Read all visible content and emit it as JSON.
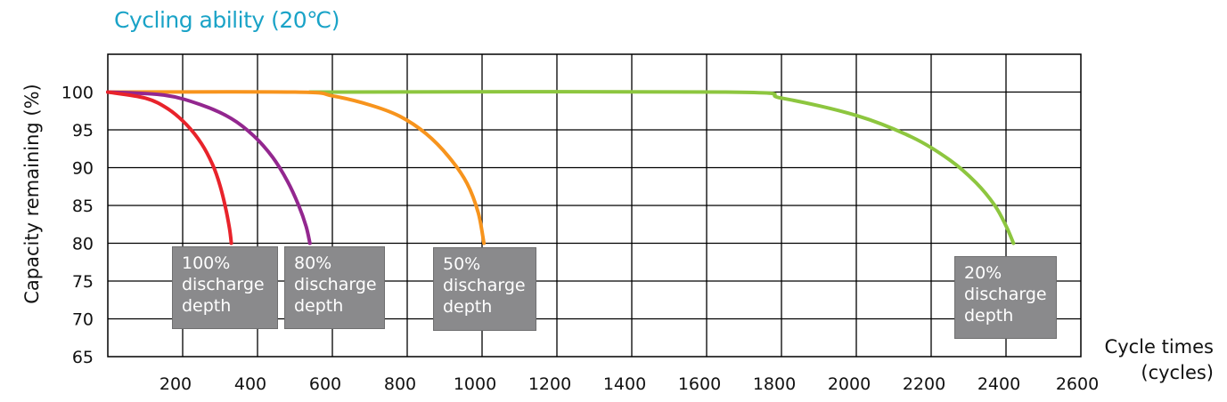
{
  "chart_data": {
    "type": "line",
    "title": "Cycling ability  (20℃)",
    "ylabel": "Capacity remaining  (%)",
    "xlabel_line1": "Cycle times",
    "xlabel_line2": "(cycles)",
    "xlim": [
      0,
      2600
    ],
    "ylim": [
      65,
      105
    ],
    "x_ticks": [
      200,
      400,
      600,
      800,
      1000,
      1200,
      1400,
      1600,
      1800,
      2000,
      2200,
      2400,
      2600
    ],
    "y_ticks": [
      65,
      70,
      75,
      80,
      85,
      90,
      95,
      100
    ],
    "grid": true,
    "series": [
      {
        "name": "100% discharge depth",
        "label_lines": [
          "100%",
          "discharge",
          "depth"
        ],
        "color": "#e8232b",
        "x": [
          0,
          100,
          160,
          210,
          250,
          280,
          300,
          315,
          325,
          330
        ],
        "y": [
          100,
          99.2,
          97.8,
          95.7,
          93.2,
          90.4,
          87.6,
          84.6,
          82.0,
          80
        ]
      },
      {
        "name": "80% discharge depth",
        "label_lines": [
          "80%",
          "discharge",
          "depth"
        ],
        "color": "#93278f",
        "x": [
          0,
          150,
          250,
          330,
          390,
          440,
          480,
          510,
          530,
          540
        ],
        "y": [
          100,
          99.6,
          98.3,
          96.5,
          94.2,
          91.4,
          88.2,
          85.0,
          82.2,
          80
        ]
      },
      {
        "name": "50% discharge depth",
        "label_lines": [
          "50%",
          "discharge",
          "depth"
        ],
        "color": "#f7941d",
        "x": [
          0,
          500,
          600,
          700,
          780,
          850,
          910,
          960,
          990,
          1005
        ],
        "y": [
          100,
          100,
          99.5,
          98.3,
          96.8,
          94.5,
          91.5,
          87.9,
          84.0,
          80
        ]
      },
      {
        "name": "20% discharge depth",
        "label_lines": [
          "20%",
          "discharge",
          "depth"
        ],
        "color": "#8dc63f",
        "x": [
          540,
          1650,
          1800,
          2000,
          2150,
          2250,
          2320,
          2370,
          2400,
          2420
        ],
        "y": [
          100,
          100,
          99.2,
          96.9,
          94.0,
          91.0,
          88.0,
          85.0,
          82.3,
          80
        ]
      }
    ]
  }
}
